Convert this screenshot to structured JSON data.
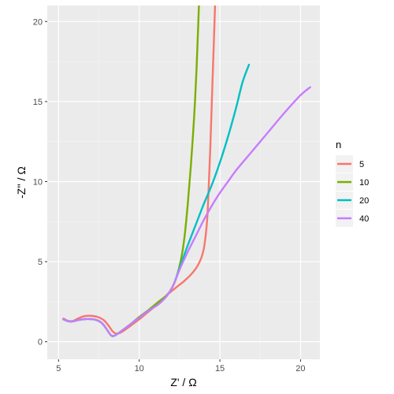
{
  "chart_data": {
    "type": "line",
    "xlabel": "Z' / Ω",
    "ylabel": "-Z'' / Ω",
    "xlim": [
      4.3,
      21.2
    ],
    "ylim": [
      -1.1,
      21.0
    ],
    "x_ticks": [
      5,
      10,
      15,
      20
    ],
    "y_ticks": [
      0,
      5,
      10,
      15,
      20
    ],
    "x_tick_labels": [
      "5",
      "10",
      "15",
      "20"
    ],
    "y_tick_labels": [
      "0",
      "5",
      "10",
      "15",
      "20"
    ],
    "grid": true,
    "legend": {
      "title": "n",
      "position": "right"
    },
    "series": [
      {
        "name": "5",
        "color": "#F8766D",
        "points": [
          [
            5.3,
            1.45
          ],
          [
            5.6,
            1.3
          ],
          [
            5.9,
            1.3
          ],
          [
            6.2,
            1.45
          ],
          [
            6.6,
            1.6
          ],
          [
            7.0,
            1.62
          ],
          [
            7.4,
            1.55
          ],
          [
            7.8,
            1.35
          ],
          [
            8.1,
            1.0
          ],
          [
            8.35,
            0.65
          ],
          [
            8.6,
            0.5
          ],
          [
            8.9,
            0.6
          ],
          [
            9.4,
            0.95
          ],
          [
            10.0,
            1.4
          ],
          [
            10.6,
            1.9
          ],
          [
            11.2,
            2.4
          ],
          [
            11.7,
            2.9
          ],
          [
            12.3,
            3.4
          ],
          [
            12.8,
            3.8
          ],
          [
            13.3,
            4.3
          ],
          [
            13.7,
            4.9
          ],
          [
            14.0,
            5.8
          ],
          [
            14.2,
            7.5
          ],
          [
            14.3,
            9.5
          ],
          [
            14.4,
            12.0
          ],
          [
            14.5,
            15.0
          ],
          [
            14.6,
            18.0
          ],
          [
            14.7,
            21.0
          ]
        ]
      },
      {
        "name": "10",
        "color": "#7CAE00",
        "points": [
          [
            5.3,
            1.4
          ],
          [
            5.6,
            1.28
          ],
          [
            5.9,
            1.27
          ],
          [
            6.3,
            1.37
          ],
          [
            6.8,
            1.42
          ],
          [
            7.3,
            1.37
          ],
          [
            7.7,
            1.15
          ],
          [
            8.0,
            0.75
          ],
          [
            8.25,
            0.4
          ],
          [
            8.45,
            0.37
          ],
          [
            8.8,
            0.6
          ],
          [
            9.4,
            1.05
          ],
          [
            10.0,
            1.55
          ],
          [
            10.6,
            2.0
          ],
          [
            11.2,
            2.5
          ],
          [
            11.7,
            2.9
          ],
          [
            12.0,
            3.3
          ],
          [
            12.3,
            4.0
          ],
          [
            12.6,
            5.2
          ],
          [
            12.8,
            6.5
          ],
          [
            13.0,
            8.5
          ],
          [
            13.2,
            11.0
          ],
          [
            13.4,
            14.0
          ],
          [
            13.55,
            17.0
          ],
          [
            13.7,
            21.0
          ]
        ]
      },
      {
        "name": "20",
        "color": "#00BFC4",
        "points": [
          [
            5.3,
            1.4
          ],
          [
            5.6,
            1.28
          ],
          [
            5.9,
            1.27
          ],
          [
            6.3,
            1.37
          ],
          [
            6.8,
            1.42
          ],
          [
            7.3,
            1.37
          ],
          [
            7.7,
            1.15
          ],
          [
            8.0,
            0.75
          ],
          [
            8.25,
            0.4
          ],
          [
            8.45,
            0.37
          ],
          [
            8.8,
            0.6
          ],
          [
            9.4,
            1.05
          ],
          [
            10.0,
            1.5
          ],
          [
            10.6,
            1.95
          ],
          [
            11.2,
            2.35
          ],
          [
            11.7,
            2.85
          ],
          [
            12.1,
            3.5
          ],
          [
            12.5,
            4.6
          ],
          [
            13.0,
            6.0
          ],
          [
            13.5,
            7.3
          ],
          [
            14.0,
            8.6
          ],
          [
            14.5,
            9.8
          ],
          [
            15.0,
            11.2
          ],
          [
            15.5,
            12.8
          ],
          [
            16.0,
            14.6
          ],
          [
            16.4,
            16.2
          ],
          [
            16.8,
            17.3
          ]
        ]
      },
      {
        "name": "40",
        "color": "#C77CFF",
        "points": [
          [
            5.3,
            1.4
          ],
          [
            5.6,
            1.28
          ],
          [
            5.9,
            1.27
          ],
          [
            6.3,
            1.37
          ],
          [
            6.8,
            1.42
          ],
          [
            7.3,
            1.37
          ],
          [
            7.7,
            1.15
          ],
          [
            8.0,
            0.75
          ],
          [
            8.25,
            0.4
          ],
          [
            8.45,
            0.37
          ],
          [
            8.8,
            0.6
          ],
          [
            9.4,
            1.05
          ],
          [
            10.0,
            1.5
          ],
          [
            10.6,
            1.95
          ],
          [
            11.2,
            2.35
          ],
          [
            11.7,
            2.85
          ],
          [
            12.1,
            3.5
          ],
          [
            12.5,
            4.5
          ],
          [
            13.0,
            5.6
          ],
          [
            13.5,
            6.6
          ],
          [
            14.0,
            7.6
          ],
          [
            14.5,
            8.5
          ],
          [
            15.0,
            9.3
          ],
          [
            15.5,
            10.0
          ],
          [
            16.0,
            10.7
          ],
          [
            17.0,
            11.9
          ],
          [
            18.0,
            13.1
          ],
          [
            19.0,
            14.3
          ],
          [
            20.0,
            15.4
          ],
          [
            20.6,
            15.9
          ]
        ]
      }
    ]
  }
}
